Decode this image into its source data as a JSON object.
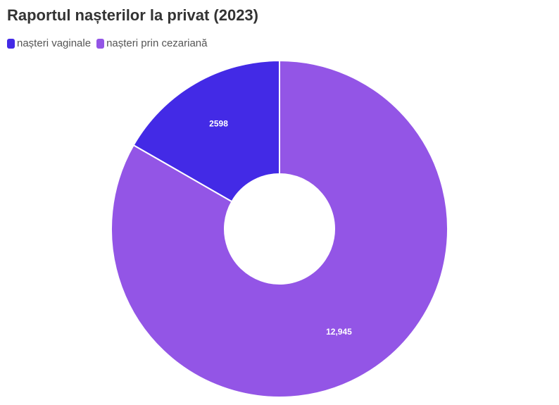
{
  "chart_data": {
    "type": "pie",
    "title": "Raportul nașterilor la privat (2023)",
    "donut": true,
    "legend_position": "top-left",
    "series": [
      {
        "name": "nașteri vaginale",
        "value": 2598,
        "label": "2598",
        "color": "#432ae6"
      },
      {
        "name": "nașteri prin cezariană",
        "value": 12945,
        "label": "12,945",
        "color": "#9355e6"
      }
    ]
  }
}
